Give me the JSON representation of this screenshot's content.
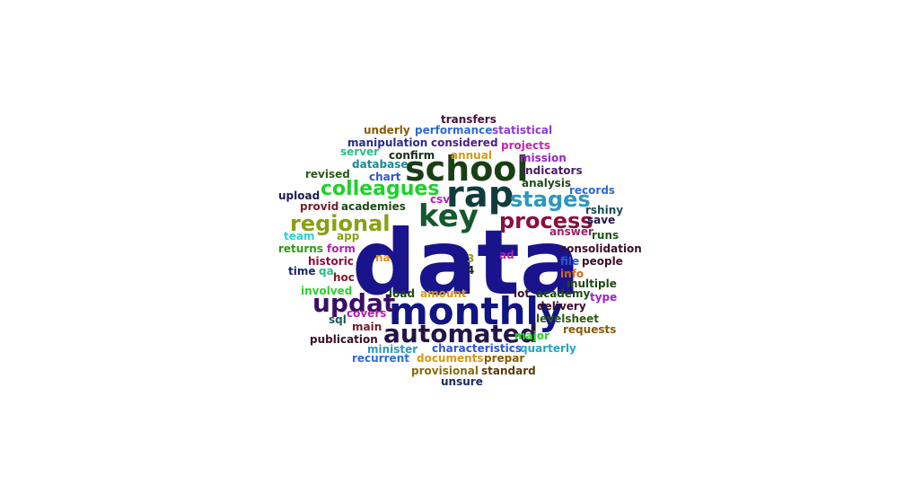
{
  "words": [
    {
      "text": "data",
      "color": "#19138c"
    },
    {
      "text": "monthly",
      "color": "#121482"
    },
    {
      "text": "school",
      "color": "#1a3f14"
    },
    {
      "text": "rap",
      "color": "#113c3c"
    },
    {
      "text": "key",
      "color": "#14582e"
    },
    {
      "text": "automated",
      "color": "#231547"
    },
    {
      "text": "updat",
      "color": "#3a0f66"
    },
    {
      "text": "process",
      "color": "#8a0e3e"
    },
    {
      "text": "regional",
      "color": "#8a9f16"
    },
    {
      "text": "colleagues",
      "color": "#1fd12a"
    },
    {
      "text": "stages",
      "color": "#2d98bd"
    },
    {
      "text": "transfers",
      "color": "#4a0d3a"
    },
    {
      "text": "underly",
      "color": "#8a5a0c"
    },
    {
      "text": "performance",
      "color": "#2f6bd1"
    },
    {
      "text": "statistical",
      "color": "#8a3bd1"
    },
    {
      "text": "manipulation",
      "color": "#2b2b8f"
    },
    {
      "text": "considered",
      "color": "#4b1d8a"
    },
    {
      "text": "projects",
      "color": "#c126a6"
    },
    {
      "text": "server",
      "color": "#26c08a"
    },
    {
      "text": "confirm",
      "color": "#142d14"
    },
    {
      "text": "annual",
      "color": "#d29a18"
    },
    {
      "text": "mission",
      "color": "#9a24c4"
    },
    {
      "text": "database",
      "color": "#1a8c94"
    },
    {
      "text": "indicators",
      "color": "#4b1d66"
    },
    {
      "text": "revised",
      "color": "#2a5a14"
    },
    {
      "text": "chart",
      "color": "#2f55d1"
    },
    {
      "text": "analysis",
      "color": "#1e4a1a"
    },
    {
      "text": "records",
      "color": "#2f6bd1"
    },
    {
      "text": "upload",
      "color": "#1a1a4d"
    },
    {
      "text": "csv",
      "color": "#b51fb5"
    },
    {
      "text": "provid",
      "color": "#7a1a2a"
    },
    {
      "text": "academies",
      "color": "#1e4a14"
    },
    {
      "text": "rshiny",
      "color": "#1a4a55"
    },
    {
      "text": "save",
      "color": "#231547"
    },
    {
      "text": "team",
      "color": "#2ad1d1"
    },
    {
      "text": "app",
      "color": "#8aa316"
    },
    {
      "text": "answer",
      "color": "#a1206a"
    },
    {
      "text": "runs",
      "color": "#1a5a1a"
    },
    {
      "text": "returns",
      "color": "#2f9a14"
    },
    {
      "text": "form",
      "color": "#b51fb5"
    },
    {
      "text": "consolidation",
      "color": "#3a0f2a"
    },
    {
      "text": "historic",
      "color": "#8a0e3e"
    },
    {
      "text": "na",
      "color": "#e4901a"
    },
    {
      "text": "3",
      "color": "#8aa316"
    },
    {
      "text": "ad",
      "color": "#b51fb5"
    },
    {
      "text": "file",
      "color": "#2f55d1"
    },
    {
      "text": "people",
      "color": "#3a0f2a"
    },
    {
      "text": "time",
      "color": "#1a2a66"
    },
    {
      "text": "qa",
      "color": "#26c08a"
    },
    {
      "text": "4",
      "color": "#142d14"
    },
    {
      "text": "hoc",
      "color": "#7a1a2a"
    },
    {
      "text": "info",
      "color": "#d2691e"
    },
    {
      "text": "multiple",
      "color": "#1e4a14"
    },
    {
      "text": "involved",
      "color": "#2ad12a"
    },
    {
      "text": "load",
      "color": "#1e4a14"
    },
    {
      "text": "amount",
      "color": "#d29a18"
    },
    {
      "text": "lot",
      "color": "#3a0f2a"
    },
    {
      "text": "academy",
      "color": "#1e4a14"
    },
    {
      "text": "type",
      "color": "#9a24c4"
    },
    {
      "text": "sql",
      "color": "#1a5a5a"
    },
    {
      "text": "covers",
      "color": "#b51fb5"
    },
    {
      "text": "delivery",
      "color": "#3a0f2a"
    },
    {
      "text": "levelsheet",
      "color": "#2a5a14"
    },
    {
      "text": "main",
      "color": "#7a1a2a"
    },
    {
      "text": "requests",
      "color": "#8a5a0c"
    },
    {
      "text": "major",
      "color": "#2ad12a"
    },
    {
      "text": "publication",
      "color": "#3a0f2a"
    },
    {
      "text": "minister",
      "color": "#2d98bd"
    },
    {
      "text": "characteristics",
      "color": "#2f55d1"
    },
    {
      "text": "quarterly",
      "color": "#26a6c0"
    },
    {
      "text": "recurrent",
      "color": "#2f6bd1"
    },
    {
      "text": "documents",
      "color": "#d29a18"
    },
    {
      "text": "prepar",
      "color": "#8a5a0c"
    },
    {
      "text": "provisional",
      "color": "#8a6a0c"
    },
    {
      "text": "standard",
      "color": "#5a3a0c"
    },
    {
      "text": "unsure",
      "color": "#1a2a66"
    }
  ]
}
